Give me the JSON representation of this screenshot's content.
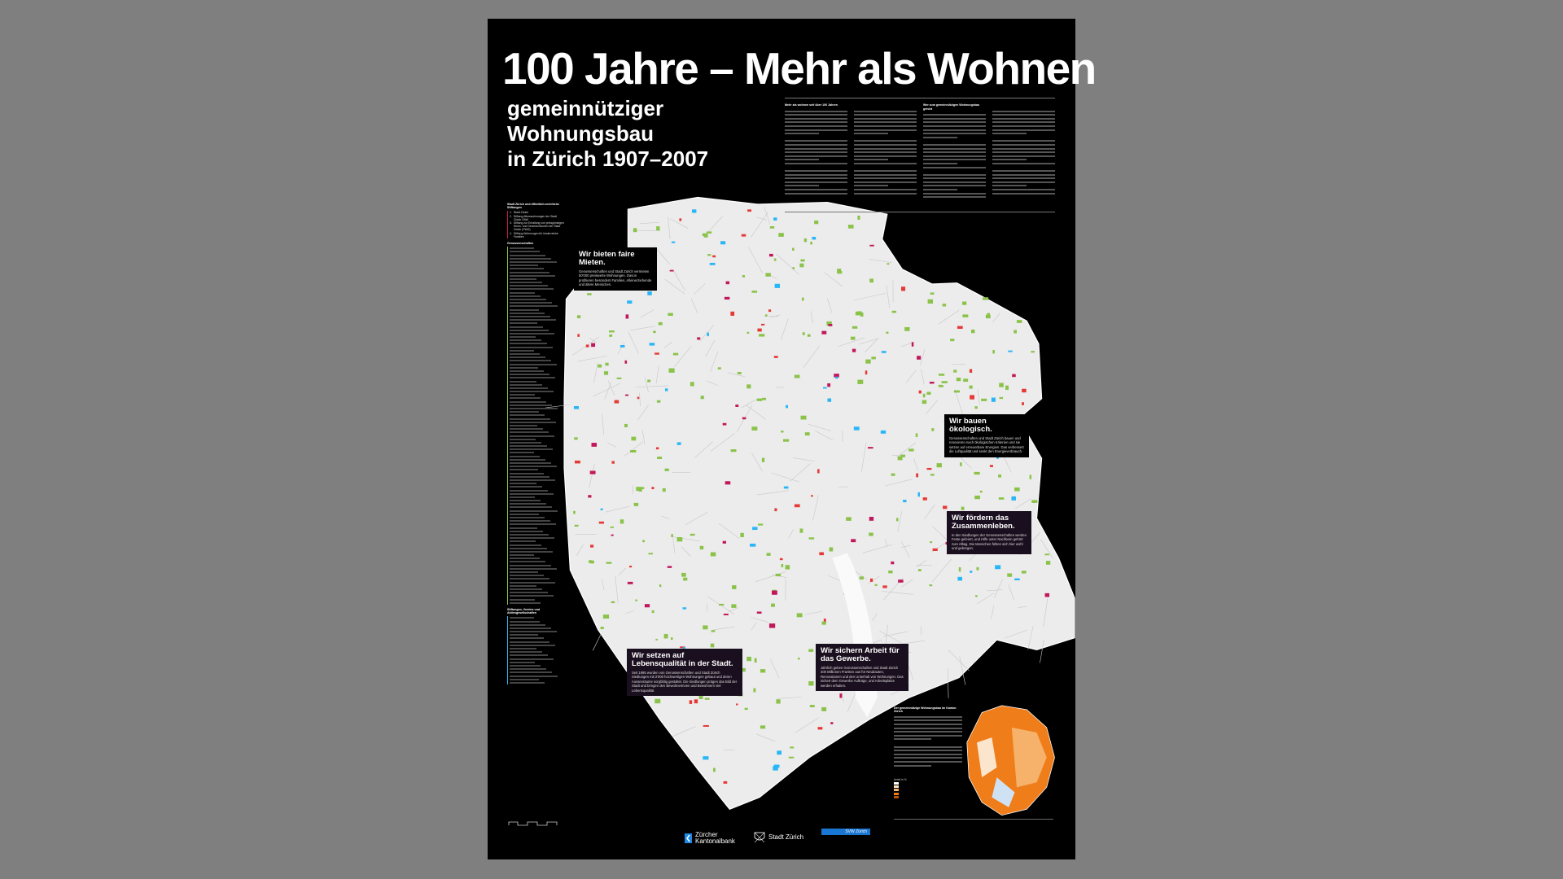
{
  "title": "100 Jahre – Mehr als Wohnen",
  "subtitle": [
    "gemeinnütziger",
    "Wohnungsbau",
    "in Zürich 1907–2007"
  ],
  "intro": {
    "col1_heading": "Mehr als wohnen seit über 100 Jahren",
    "col3_heading": "Wer zum gemeinnützigen Wohnungsbau gehört"
  },
  "legend": {
    "section1": "Stadt Zürich und öffentlich-rechtliche Stiftungen",
    "section1_items": [
      {
        "n": "1.",
        "label": "Stadt Zürich"
      },
      {
        "n": "2.",
        "label": "Stiftung Alterswohnungen der Stadt Zürich SAW"
      },
      {
        "n": "3.",
        "label": "Stiftung zur Erhaltung von preisgünstigen Wohn- und Gewerberäumen der Stadt Zürich (PWG)"
      },
      {
        "n": "4.",
        "label": "Stiftung Wohnungen für kinderreiche Familien"
      }
    ],
    "section2": "Genossenschaften",
    "section3": "Stiftungen, Vereine und Aktiengesellschaften"
  },
  "callouts": [
    {
      "id": "mieten",
      "heading": "Wir bieten faire Mieten.",
      "text": "Genossenschaften und Stadt Zürich vermieten 50'000 preiswerte Wohnungen. Davon profitieren besonders Familien, Alleinerziehende und ältere Menschen."
    },
    {
      "id": "oekologisch",
      "heading": "Wir bauen ökologisch.",
      "text": "Genossenschaften und Stadt Zürich bauen und renovieren nach ökologischen Kriterien und sie setzen auf erneuerbare Energien. Das verbessert die Luftqualität und senkt den Energieverbrauch."
    },
    {
      "id": "zusammenleben",
      "heading": "Wir fördern das Zusammenleben.",
      "text": "In den Siedlungen der Genossenschaften werden Feste gefeiert, und Hilfe unter Nachbarn gehört zum Alltag. Die Menschen fühlen sich hier wohl und geborgen."
    },
    {
      "id": "lebensqualitaet",
      "heading": "Wir setzen auf Lebensqualität in der Stadt.",
      "text": "Seit 1995 wurden von Genossenschaften und Stadt Zürich Siedlungen mit 2'000 hochwertigen Wohnungen gebaut und deren Aussenräume sorgfältig gestaltet. Die Siedlungen prägen das Bild der Stadt und bringen den Bewohnerinnen und Bewohnern viel Lebensqualität."
    },
    {
      "id": "gewerbe",
      "heading": "Wir sichern Arbeit für das Gewerbe.",
      "text": "Jährlich geben Genossenschaften und Stadt Zürich 300 Millionen Franken aus für Neubauten, Renovationen und den Unterhalt von Wohnungen. Das sichert dem Gewerbe Aufträge, und Arbeitsplätze werden erhalten."
    }
  ],
  "inset": {
    "heading": "Der gemeinnützige Wohnungsbau im Kanton Zürich",
    "legend_title": "Anteil in %"
  },
  "logos": {
    "zkb": [
      "Zürcher",
      "Kantonalbank"
    ],
    "stadt": "Stadt Zürich",
    "svw": "SVW Zürich"
  },
  "colors": {
    "background": "#000000",
    "map": "#efefef",
    "genossenschaften": "#8bc34a",
    "stadt": "#e53935",
    "stiftungen": "#c2185b",
    "other": "#29b6f6",
    "inset_orange": "#ef7d1a"
  }
}
